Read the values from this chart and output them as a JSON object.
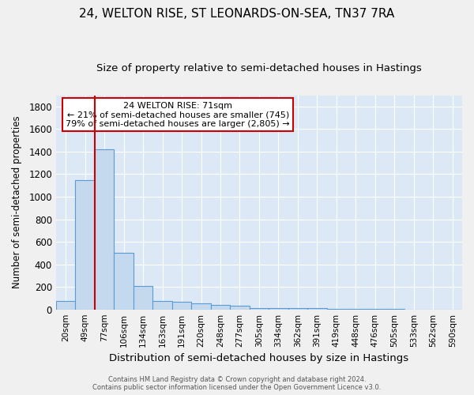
{
  "title": "24, WELTON RISE, ST LEONARDS-ON-SEA, TN37 7RA",
  "subtitle": "Size of property relative to semi-detached houses in Hastings",
  "xlabel": "Distribution of semi-detached houses by size in Hastings",
  "ylabel": "Number of semi-detached properties",
  "categories": [
    "20sqm",
    "49sqm",
    "77sqm",
    "106sqm",
    "134sqm",
    "163sqm",
    "191sqm",
    "220sqm",
    "248sqm",
    "277sqm",
    "305sqm",
    "334sqm",
    "362sqm",
    "391sqm",
    "419sqm",
    "448sqm",
    "476sqm",
    "505sqm",
    "533sqm",
    "562sqm",
    "590sqm"
  ],
  "values": [
    75,
    1150,
    1420,
    500,
    210,
    75,
    65,
    55,
    40,
    30,
    15,
    10,
    10,
    15,
    5,
    3,
    3,
    2,
    1,
    1,
    0
  ],
  "bar_color": "#c5d9ee",
  "bar_edge_color": "#5b9bd5",
  "red_line_x": 1.5,
  "annotation_title": "24 WELTON RISE: 71sqm",
  "annotation_line1": "← 21% of semi-detached houses are smaller (745)",
  "annotation_line2": "79% of semi-detached houses are larger (2,805) →",
  "annotation_box_color": "#ffffff",
  "annotation_box_edge_color": "#cc0000",
  "ylim": [
    0,
    1900
  ],
  "axes_bg_color": "#dce8f5",
  "fig_bg_color": "#f0f0f0",
  "grid_color": "#ffffff",
  "footer": "Contains HM Land Registry data © Crown copyright and database right 2024.\nContains public sector information licensed under the Open Government Licence v3.0.",
  "title_fontsize": 11,
  "subtitle_fontsize": 9.5,
  "xlabel_fontsize": 9.5,
  "ylabel_fontsize": 8.5,
  "tick_fontsize": 7.5,
  "ytick_fontsize": 8.5
}
